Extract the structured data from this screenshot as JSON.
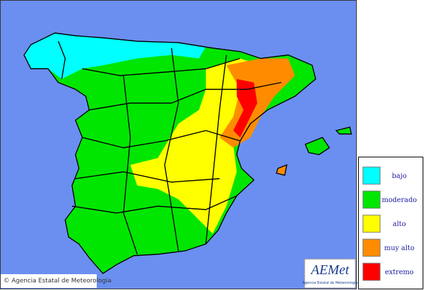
{
  "map": {
    "credit": "© Agencia Estatal de Meteorologia"
  },
  "logo": {
    "name": "AEMet",
    "subtitle": "Agencia Estatal de Meteorologia"
  },
  "legend": [
    {
      "label": "bajo",
      "color": "#00ffff"
    },
    {
      "label": "moderado",
      "color": "#00e600"
    },
    {
      "label": "alto",
      "color": "#ffff00"
    },
    {
      "label": "muy alto",
      "color": "#ff8c00"
    },
    {
      "label": "extremo",
      "color": "#ff0000"
    }
  ]
}
